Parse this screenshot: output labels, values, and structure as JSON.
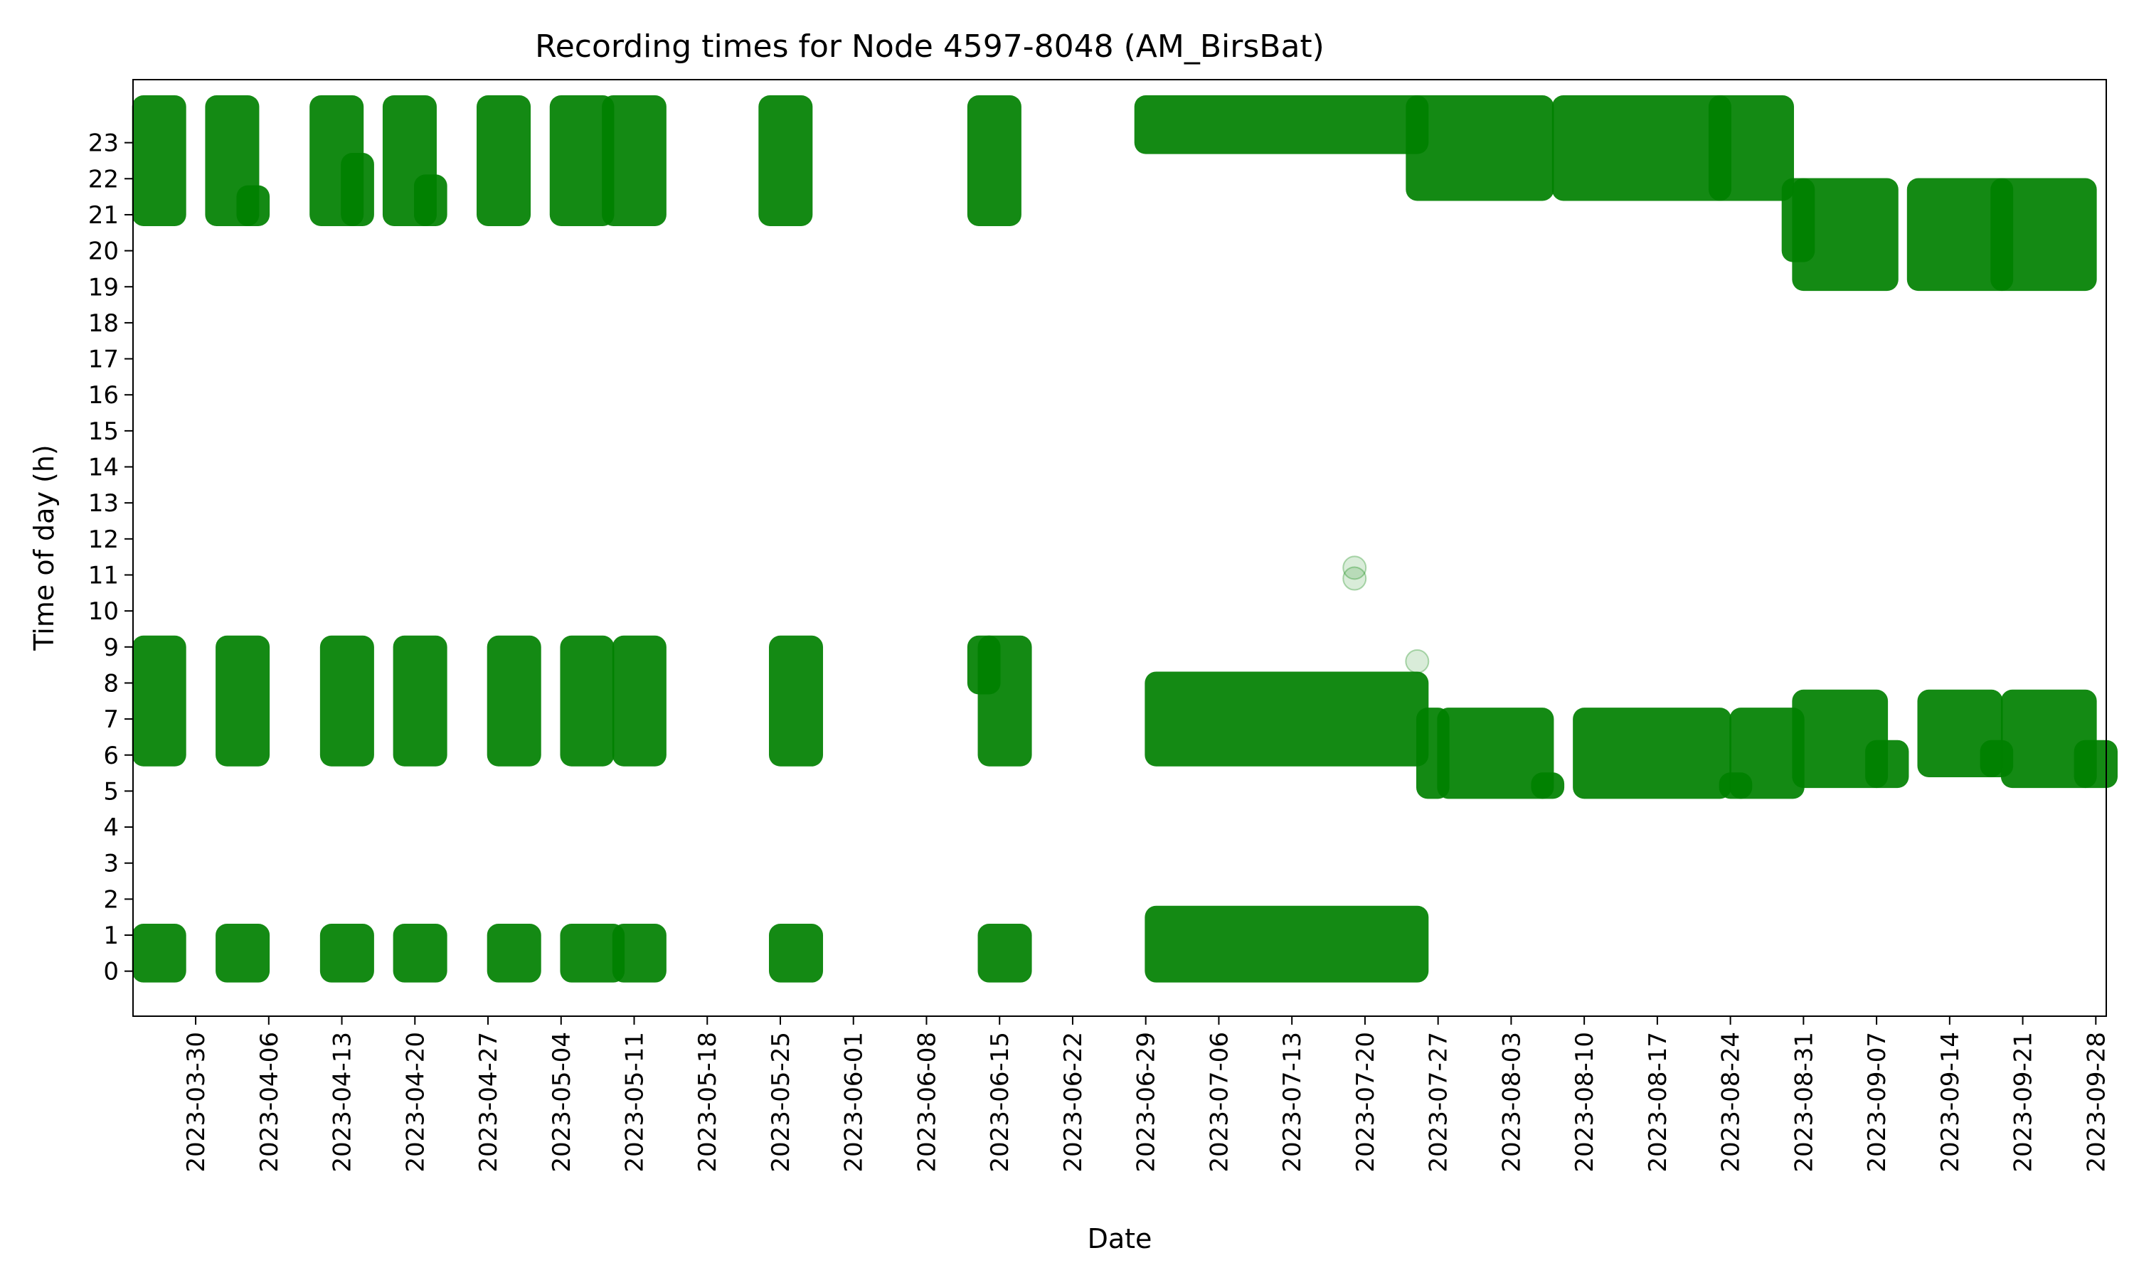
{
  "chart_data": {
    "type": "scatter",
    "title": "Recording times for Node 4597-8048 (AM_BirsBat)",
    "xlabel": "Date",
    "ylabel": "Time of day (h)",
    "xlim": [
      "2023-03-24",
      "2023-09-29"
    ],
    "ylim": [
      -1.25,
      24.75
    ],
    "grid": false,
    "marker_color": "#008000",
    "x_ticks": [
      "2023-03-30",
      "2023-04-06",
      "2023-04-13",
      "2023-04-20",
      "2023-04-27",
      "2023-05-04",
      "2023-05-11",
      "2023-05-18",
      "2023-05-25",
      "2023-06-01",
      "2023-06-08",
      "2023-06-15",
      "2023-06-22",
      "2023-06-29",
      "2023-07-06",
      "2023-07-13",
      "2023-07-20",
      "2023-07-27",
      "2023-08-03",
      "2023-08-10",
      "2023-08-17",
      "2023-08-24",
      "2023-08-31",
      "2023-09-07",
      "2023-09-14",
      "2023-09-21",
      "2023-09-28"
    ],
    "y_ticks": [
      0,
      1,
      2,
      3,
      4,
      5,
      6,
      7,
      8,
      9,
      10,
      11,
      12,
      13,
      14,
      15,
      16,
      17,
      18,
      19,
      20,
      21,
      22,
      23
    ],
    "recording_blocks": [
      {
        "start": "2023-03-25",
        "end": "2023-03-28",
        "y_min": 21.0,
        "y_max": 24.0
      },
      {
        "start": "2023-03-25",
        "end": "2023-03-28",
        "y_min": 6.0,
        "y_max": 9.0
      },
      {
        "start": "2023-03-25",
        "end": "2023-03-28",
        "y_min": 0.0,
        "y_max": 1.0
      },
      {
        "start": "2023-04-01",
        "end": "2023-04-04",
        "y_min": 21.0,
        "y_max": 24.0
      },
      {
        "start": "2023-04-04",
        "end": "2023-04-05",
        "y_min": 21.0,
        "y_max": 21.5
      },
      {
        "start": "2023-04-02",
        "end": "2023-04-05",
        "y_min": 6.0,
        "y_max": 9.0
      },
      {
        "start": "2023-04-02",
        "end": "2023-04-05",
        "y_min": 0.0,
        "y_max": 1.0
      },
      {
        "start": "2023-04-11",
        "end": "2023-04-14",
        "y_min": 21.0,
        "y_max": 24.0
      },
      {
        "start": "2023-04-14",
        "end": "2023-04-15",
        "y_min": 21.0,
        "y_max": 22.4
      },
      {
        "start": "2023-04-12",
        "end": "2023-04-15",
        "y_min": 6.0,
        "y_max": 9.0
      },
      {
        "start": "2023-04-12",
        "end": "2023-04-15",
        "y_min": 0.0,
        "y_max": 1.0
      },
      {
        "start": "2023-04-18",
        "end": "2023-04-21",
        "y_min": 21.0,
        "y_max": 24.0
      },
      {
        "start": "2023-04-21",
        "end": "2023-04-22",
        "y_min": 21.0,
        "y_max": 21.8
      },
      {
        "start": "2023-04-19",
        "end": "2023-04-22",
        "y_min": 6.0,
        "y_max": 9.0
      },
      {
        "start": "2023-04-19",
        "end": "2023-04-22",
        "y_min": 0.0,
        "y_max": 1.0
      },
      {
        "start": "2023-04-27",
        "end": "2023-04-30",
        "y_min": 21.0,
        "y_max": 24.0
      },
      {
        "start": "2023-04-28",
        "end": "2023-05-01",
        "y_min": 6.0,
        "y_max": 9.0
      },
      {
        "start": "2023-04-28",
        "end": "2023-05-01",
        "y_min": 0.0,
        "y_max": 1.0
      },
      {
        "start": "2023-05-04",
        "end": "2023-05-08",
        "y_min": 21.0,
        "y_max": 24.0
      },
      {
        "start": "2023-05-05",
        "end": "2023-05-08",
        "y_min": 6.0,
        "y_max": 9.0
      },
      {
        "start": "2023-05-05",
        "end": "2023-05-09",
        "y_min": 0.0,
        "y_max": 1.0
      },
      {
        "start": "2023-05-09",
        "end": "2023-05-13",
        "y_min": 21.0,
        "y_max": 24.0
      },
      {
        "start": "2023-05-10",
        "end": "2023-05-13",
        "y_min": 6.0,
        "y_max": 9.0
      },
      {
        "start": "2023-05-10",
        "end": "2023-05-13",
        "y_min": 0.0,
        "y_max": 1.0
      },
      {
        "start": "2023-05-24",
        "end": "2023-05-27",
        "y_min": 21.0,
        "y_max": 24.0
      },
      {
        "start": "2023-05-25",
        "end": "2023-05-28",
        "y_min": 6.0,
        "y_max": 9.0
      },
      {
        "start": "2023-05-25",
        "end": "2023-05-28",
        "y_min": 0.0,
        "y_max": 1.0
      },
      {
        "start": "2023-06-13",
        "end": "2023-06-16",
        "y_min": 21.0,
        "y_max": 24.0
      },
      {
        "start": "2023-06-13",
        "end": "2023-06-14",
        "y_min": 8.0,
        "y_max": 9.0
      },
      {
        "start": "2023-06-14",
        "end": "2023-06-17",
        "y_min": 6.0,
        "y_max": 9.0
      },
      {
        "start": "2023-06-14",
        "end": "2023-06-17",
        "y_min": 0.0,
        "y_max": 1.0
      },
      {
        "start": "2023-06-29",
        "end": "2023-07-25",
        "y_min": 23.0,
        "y_max": 24.0
      },
      {
        "start": "2023-07-25",
        "end": "2023-08-06",
        "y_min": 21.7,
        "y_max": 24.0
      },
      {
        "start": "2023-06-30",
        "end": "2023-07-25",
        "y_min": 6.0,
        "y_max": 8.0
      },
      {
        "start": "2023-07-26",
        "end": "2023-07-27",
        "y_min": 5.1,
        "y_max": 7.0
      },
      {
        "start": "2023-07-28",
        "end": "2023-08-06",
        "y_min": 5.1,
        "y_max": 7.0
      },
      {
        "start": "2023-08-06",
        "end": "2023-08-07",
        "y_min": 5.1,
        "y_max": 5.2
      },
      {
        "start": "2023-06-30",
        "end": "2023-07-25",
        "y_min": 0.0,
        "y_max": 1.5
      },
      {
        "start": "2023-08-08",
        "end": "2023-08-23",
        "y_min": 21.7,
        "y_max": 24.0
      },
      {
        "start": "2023-08-23",
        "end": "2023-08-29",
        "y_min": 21.7,
        "y_max": 24.0
      },
      {
        "start": "2023-08-10",
        "end": "2023-08-23",
        "y_min": 5.1,
        "y_max": 7.0
      },
      {
        "start": "2023-08-24",
        "end": "2023-08-25",
        "y_min": 5.1,
        "y_max": 5.2
      },
      {
        "start": "2023-08-25",
        "end": "2023-08-30",
        "y_min": 5.1,
        "y_max": 7.0
      },
      {
        "start": "2023-08-30",
        "end": "2023-08-31",
        "y_min": 20.0,
        "y_max": 21.7
      },
      {
        "start": "2023-08-31",
        "end": "2023-09-08",
        "y_min": 19.2,
        "y_max": 21.7
      },
      {
        "start": "2023-08-31",
        "end": "2023-09-07",
        "y_min": 5.4,
        "y_max": 7.5
      },
      {
        "start": "2023-09-07",
        "end": "2023-09-09",
        "y_min": 5.4,
        "y_max": 6.1
      },
      {
        "start": "2023-09-11",
        "end": "2023-09-19",
        "y_min": 19.2,
        "y_max": 21.7
      },
      {
        "start": "2023-09-12",
        "end": "2023-09-18",
        "y_min": 5.7,
        "y_max": 7.5
      },
      {
        "start": "2023-09-18",
        "end": "2023-09-19",
        "y_min": 5.7,
        "y_max": 6.1
      },
      {
        "start": "2023-09-19",
        "end": "2023-09-27",
        "y_min": 19.2,
        "y_max": 21.7
      },
      {
        "start": "2023-09-20",
        "end": "2023-09-27",
        "y_min": 5.4,
        "y_max": 7.5
      },
      {
        "start": "2023-09-27",
        "end": "2023-09-29",
        "y_min": 5.4,
        "y_max": 6.1
      }
    ],
    "isolated_points": [
      {
        "date": "2023-07-19",
        "hour": 11.2
      },
      {
        "date": "2023-07-19",
        "hour": 10.9
      },
      {
        "date": "2023-07-25",
        "hour": 8.6
      }
    ]
  }
}
